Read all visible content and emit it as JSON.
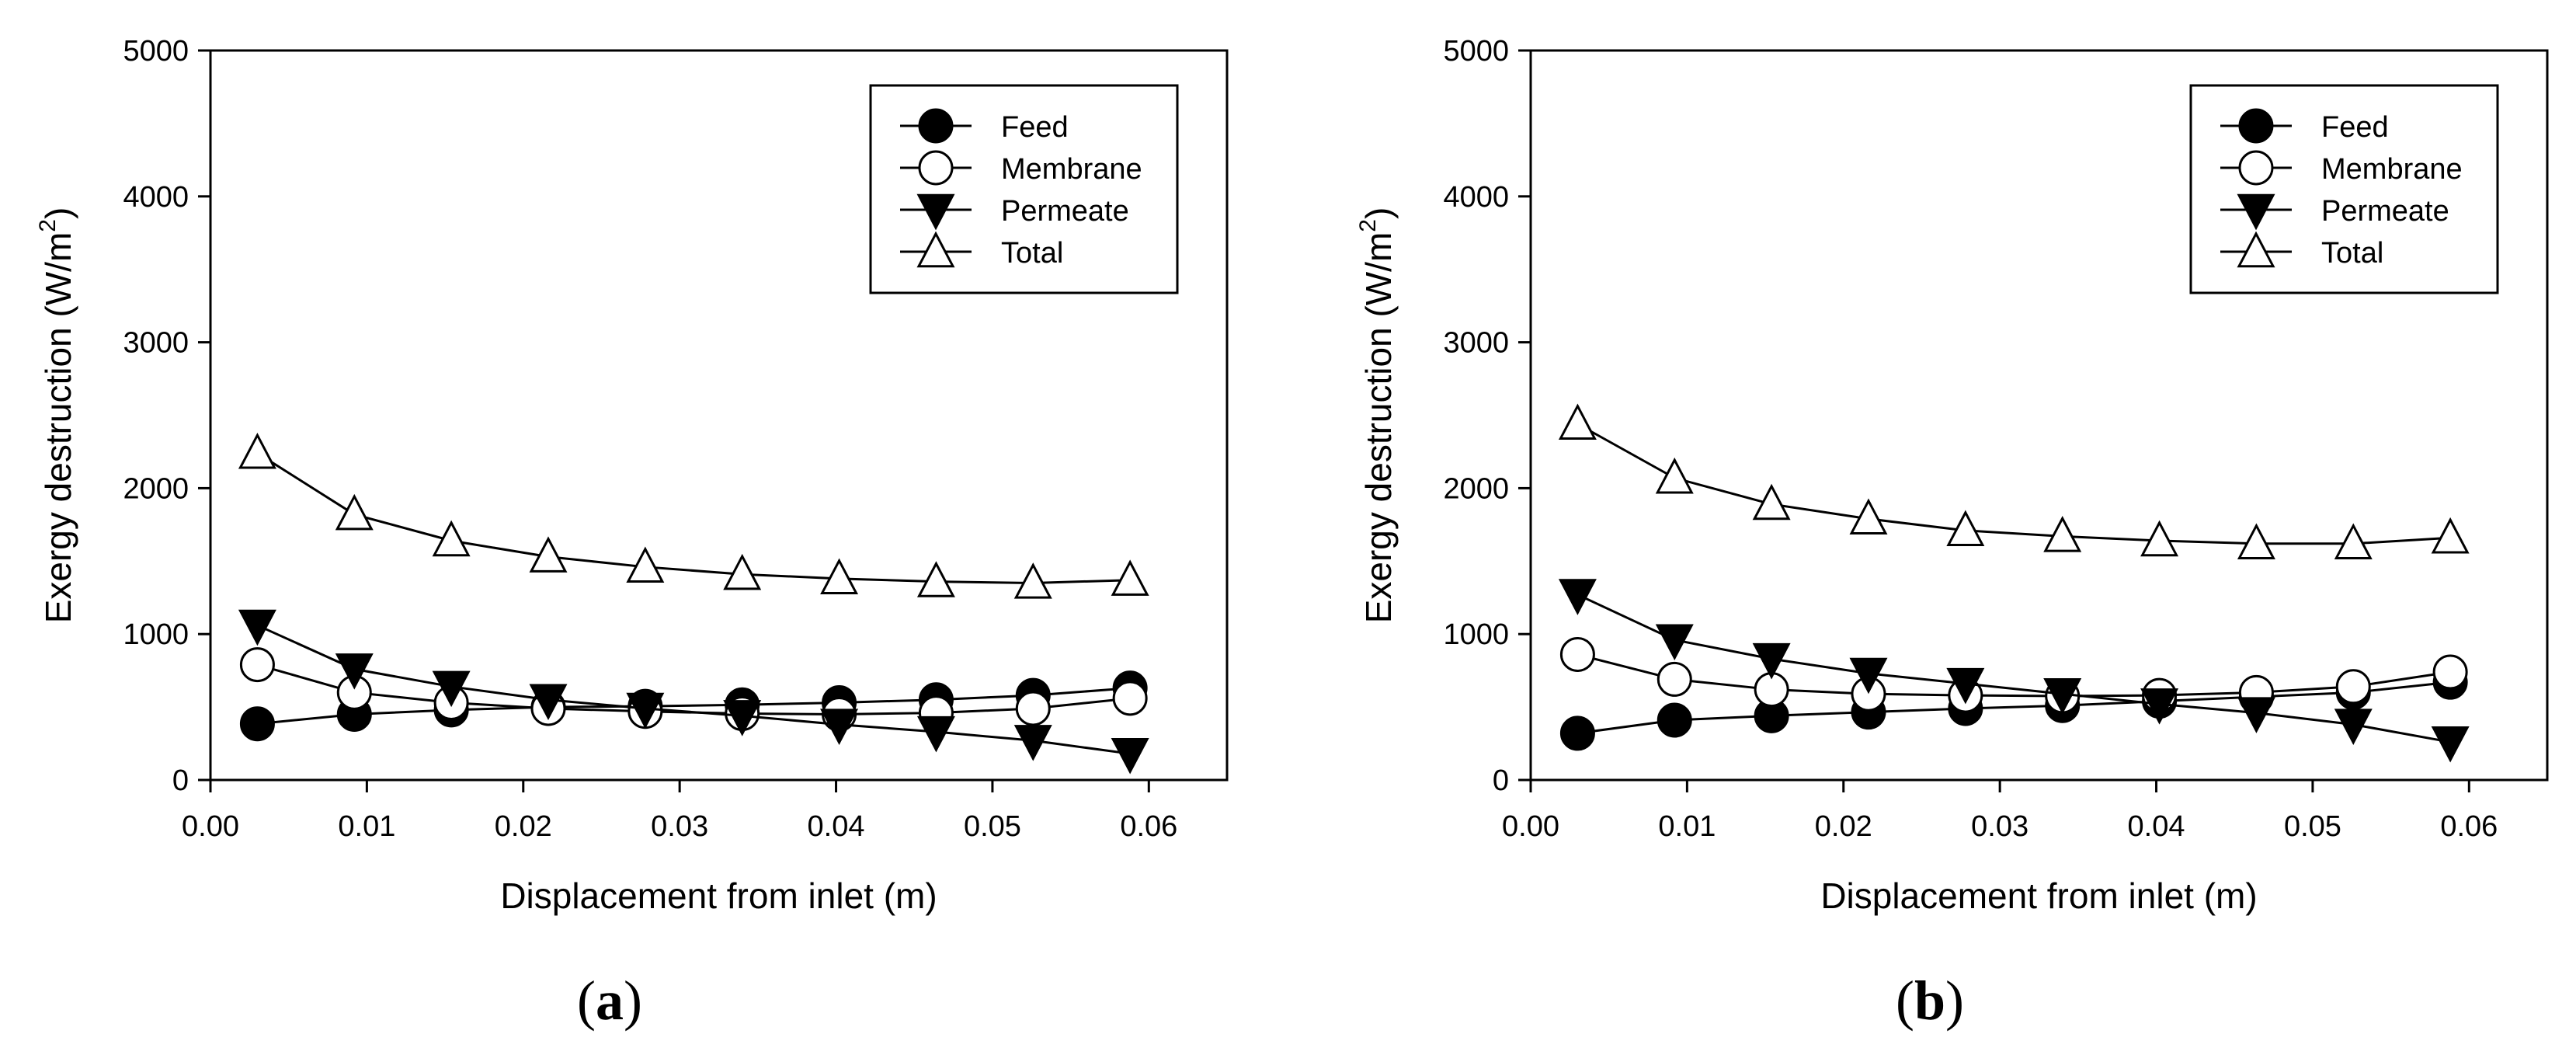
{
  "chart_data": [
    {
      "type": "line",
      "panel_label": "a",
      "title": "",
      "xlabel": "Displacement from inlet (m)",
      "ylabel": "Exergy destruction (W/m",
      "ylabel_sup": "2",
      "ylabel_close": ")",
      "xlim": [
        0,
        0.065
      ],
      "ylim": [
        0,
        5000
      ],
      "xticks": [
        "0.00",
        "0.01",
        "0.02",
        "0.03",
        "0.04",
        "0.05",
        "0.06"
      ],
      "xtick_values": [
        0,
        0.01,
        0.02,
        0.03,
        0.04,
        0.05,
        0.06
      ],
      "yticks": [
        "0",
        "1000",
        "2000",
        "3000",
        "4000",
        "5000"
      ],
      "ytick_values": [
        0,
        1000,
        2000,
        3000,
        4000,
        5000
      ],
      "grid": false,
      "legend_position": "top-right",
      "x": [
        0.003,
        0.0092,
        0.0154,
        0.0216,
        0.0278,
        0.034,
        0.0402,
        0.0464,
        0.0526,
        0.0588
      ],
      "series": [
        {
          "name": "Feed",
          "marker": "circle-filled",
          "values": [
            385,
            450,
            480,
            500,
            505,
            515,
            530,
            550,
            580,
            630
          ]
        },
        {
          "name": "Membrane",
          "marker": "circle-open",
          "values": [
            790,
            600,
            530,
            490,
            470,
            455,
            450,
            460,
            490,
            560
          ]
        },
        {
          "name": "Permeate",
          "marker": "triangle-down-filled",
          "values": [
            1060,
            760,
            640,
            550,
            490,
            440,
            380,
            330,
            270,
            180
          ]
        },
        {
          "name": "Total",
          "marker": "triangle-up-open",
          "values": [
            2240,
            1820,
            1640,
            1530,
            1460,
            1410,
            1380,
            1360,
            1350,
            1370
          ]
        }
      ]
    },
    {
      "type": "line",
      "panel_label": "b",
      "title": "",
      "xlabel": "Displacement from inlet (m)",
      "ylabel": "Exergy destruction (W/m",
      "ylabel_sup": "2",
      "ylabel_close": ")",
      "xlim": [
        0,
        0.065
      ],
      "ylim": [
        0,
        5000
      ],
      "xticks": [
        "0.00",
        "0.01",
        "0.02",
        "0.03",
        "0.04",
        "0.05",
        "0.06"
      ],
      "xtick_values": [
        0,
        0.01,
        0.02,
        0.03,
        0.04,
        0.05,
        0.06
      ],
      "yticks": [
        "0",
        "1000",
        "2000",
        "3000",
        "4000",
        "5000"
      ],
      "ytick_values": [
        0,
        1000,
        2000,
        3000,
        4000,
        5000
      ],
      "grid": false,
      "legend_position": "top-right",
      "x": [
        0.003,
        0.0092,
        0.0154,
        0.0216,
        0.0278,
        0.034,
        0.0402,
        0.0464,
        0.0526,
        0.0588
      ],
      "series": [
        {
          "name": "Feed",
          "marker": "circle-filled",
          "values": [
            320,
            410,
            440,
            465,
            490,
            510,
            540,
            570,
            600,
            670
          ]
        },
        {
          "name": "Membrane",
          "marker": "circle-open",
          "values": [
            860,
            690,
            620,
            590,
            580,
            575,
            580,
            600,
            640,
            740
          ]
        },
        {
          "name": "Permeate",
          "marker": "triangle-down-filled",
          "values": [
            1270,
            960,
            830,
            730,
            660,
            590,
            520,
            460,
            380,
            260
          ]
        },
        {
          "name": "Total",
          "marker": "triangle-up-open",
          "values": [
            2440,
            2070,
            1890,
            1790,
            1710,
            1670,
            1640,
            1620,
            1620,
            1660
          ]
        }
      ]
    }
  ]
}
